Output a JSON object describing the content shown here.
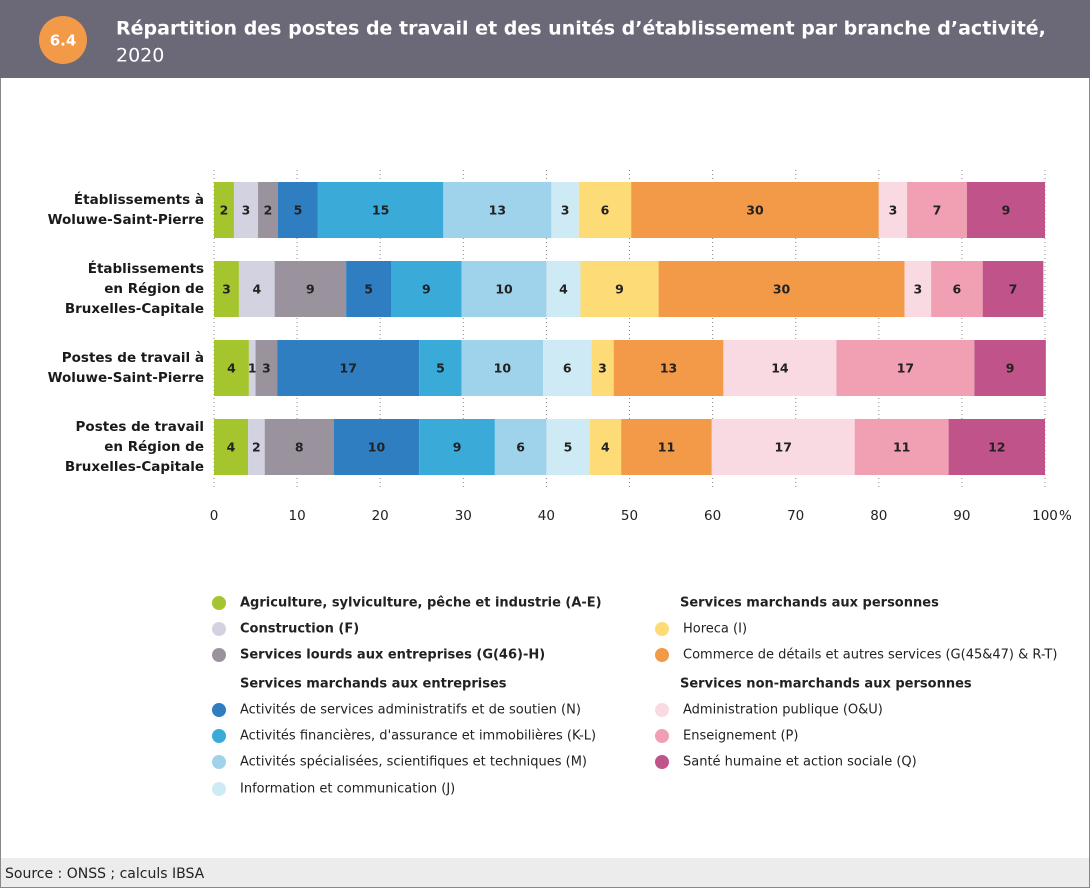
{
  "figure_number": "6.4",
  "source": "Source : ONSS ; calculs IBSA",
  "chart_data": {
    "type": "stacked-barh",
    "title": "Répartition des postes de travail et des unités d’établissement par branche d’activité,",
    "subtitle": "2020",
    "categories": [
      [
        "Établissements à",
        "Woluwe-Saint-Pierre"
      ],
      [
        "Établissements",
        "en Région de",
        "Bruxelles-Capitale"
      ],
      [
        "Postes de travail à",
        "Woluwe-Saint-Pierre"
      ],
      [
        "Postes de travail",
        "en Région de",
        "Bruxelles-Capitale"
      ]
    ],
    "xlim": [
      0,
      100
    ],
    "xticks": [
      0,
      10,
      20,
      30,
      40,
      50,
      60,
      70,
      80,
      90,
      100
    ],
    "x_unit": "%",
    "grid": true,
    "legend_headings": [
      "Services marchands aux personnes",
      "Services marchands aux entreprises",
      "Services non-marchands aux personnes"
    ],
    "series": [
      {
        "name": "Agriculture, sylviculture, pêche et industrie (A-E)",
        "color": "#a5c52e",
        "values": [
          2.4,
          3.0,
          4.2,
          4.1
        ],
        "value_labels": [
          "2",
          "3",
          "4",
          "4"
        ]
      },
      {
        "name": "Construction (F)",
        "color": "#d3d2e0",
        "values": [
          2.9,
          4.3,
          0.8,
          2.0
        ],
        "value_labels": [
          "3",
          "4",
          "1",
          "2"
        ]
      },
      {
        "name": "Services lourds aux entreprises (G(46)-H)",
        "color": "#9a939e",
        "values": [
          2.4,
          8.6,
          2.6,
          8.3
        ],
        "value_labels": [
          "2",
          "9",
          "3",
          "8"
        ]
      },
      {
        "name": "Activités de services administratifs et de soutien (N)",
        "color": "#2f7ec2",
        "values": [
          4.8,
          5.4,
          17.1,
          10.3
        ],
        "value_labels": [
          "5",
          "5",
          "17",
          "10"
        ]
      },
      {
        "name": "Activités financières, d'assurance et immobilières (K-L)",
        "color": "#3aabd8",
        "values": [
          15.1,
          8.5,
          5.1,
          9.1
        ],
        "value_labels": [
          "15",
          "9",
          "5",
          "9"
        ]
      },
      {
        "name": "Activités spécialisées, scientifiques et techniques (M)",
        "color": "#9fd3ec",
        "values": [
          13.0,
          10.2,
          9.8,
          6.2
        ],
        "value_labels": [
          "13",
          "10",
          "10",
          "6"
        ]
      },
      {
        "name": "Information et communication (J)",
        "color": "#cdeaf5",
        "values": [
          3.3,
          4.1,
          5.8,
          5.2
        ],
        "value_labels": [
          "3",
          "4",
          "6",
          "5"
        ]
      },
      {
        "name": "Horeca (I)",
        "color": "#fddc78",
        "values": [
          6.3,
          9.4,
          2.7,
          3.8
        ],
        "value_labels": [
          "6",
          "9",
          "3",
          "4"
        ]
      },
      {
        "name": "Commerce de détails et autres services (G(45&47) & R-T)",
        "color": "#f39a48",
        "values": [
          29.8,
          29.6,
          13.2,
          10.9
        ],
        "value_labels": [
          "30",
          "30",
          "13",
          "11"
        ]
      },
      {
        "name": "Administration publique (O&U)",
        "color": "#f9d9e2",
        "values": [
          3.4,
          3.2,
          13.6,
          17.2
        ],
        "value_labels": [
          "3",
          "3",
          "14",
          "17"
        ]
      },
      {
        "name": "Enseignement (P)",
        "color": "#f1a0b4",
        "values": [
          7.2,
          6.2,
          16.6,
          11.3
        ],
        "value_labels": [
          "7",
          "6",
          "17",
          "11"
        ]
      },
      {
        "name": "Santé humaine et action sociale (Q)",
        "color": "#c0538a",
        "values": [
          9.4,
          7.3,
          8.6,
          11.6
        ],
        "value_labels": [
          "9",
          "7",
          "9",
          "12"
        ]
      }
    ]
  }
}
